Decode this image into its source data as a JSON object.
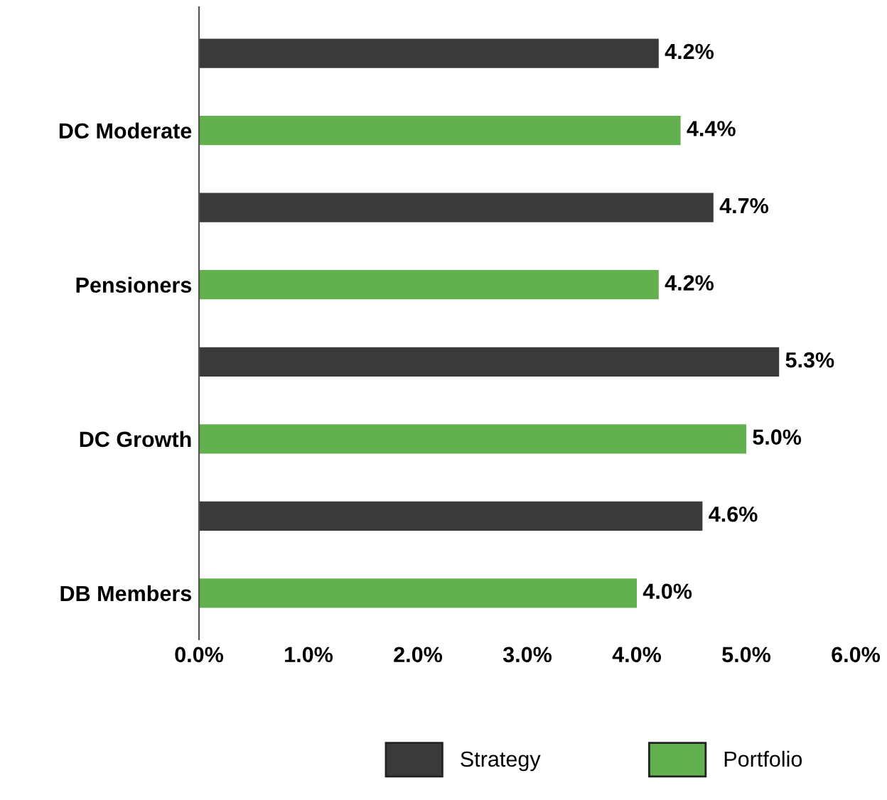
{
  "chart_data": {
    "type": "bar",
    "orientation": "horizontal",
    "categories": [
      "DC Moderate",
      "Pensioners",
      "DC Growth",
      "DB Members"
    ],
    "series": [
      {
        "name": "Strategy",
        "color": "#3a3a3a",
        "values": [
          4.2,
          4.7,
          5.3,
          4.6
        ],
        "value_labels": [
          "4.2%",
          "4.7%",
          "5.3%",
          "4.6%"
        ]
      },
      {
        "name": "Portfolio",
        "color": "#63b04f",
        "values": [
          4.4,
          4.2,
          5.0,
          4.0
        ],
        "value_labels": [
          "4.4%",
          "4.2%",
          "5.0%",
          "4.0%"
        ]
      }
    ],
    "xlim": [
      0,
      6
    ],
    "xticks": [
      {
        "value": 0,
        "label": "0.0%"
      },
      {
        "value": 1,
        "label": "1.0%"
      },
      {
        "value": 2,
        "label": "2.0%"
      },
      {
        "value": 3,
        "label": "3.0%"
      },
      {
        "value": 4,
        "label": "4.0%"
      },
      {
        "value": 5,
        "label": "5.0%"
      },
      {
        "value": 6,
        "label": "6.0%"
      }
    ],
    "grid": false,
    "legend": "bottom"
  }
}
